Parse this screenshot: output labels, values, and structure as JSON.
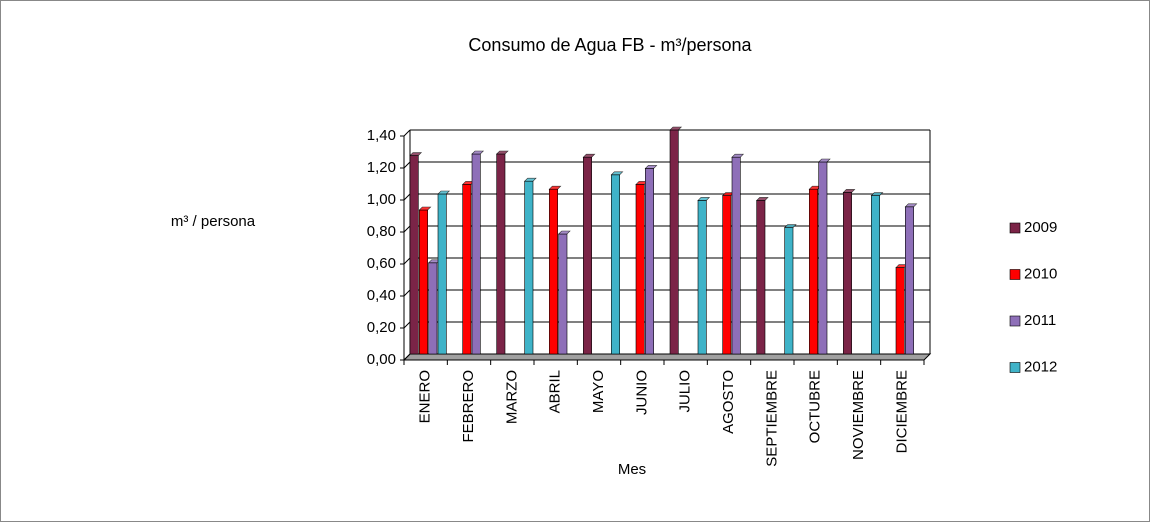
{
  "chart_data": {
    "type": "bar",
    "title": "Consumo de Agua FB - m³/persona",
    "y_label": "m³ / persona",
    "x_label": "Mes",
    "categories": [
      "ENERO",
      "FEBRERO",
      "MARZO",
      "ABRIL",
      "MAYO",
      "JUNIO",
      "JULIO",
      "AGOSTO",
      "SEPTIEMBRE",
      "OCTUBRE",
      "NOVIEMBRE",
      "DICIEMBRE"
    ],
    "series": [
      {
        "name": "2009",
        "color": "#7b2447",
        "values": [
          1.24,
          null,
          1.25,
          null,
          1.23,
          null,
          1.4,
          null,
          0.96,
          null,
          1.01,
          null
        ]
      },
      {
        "name": "2010",
        "color": "#ff0000",
        "values": [
          0.9,
          1.06,
          null,
          1.03,
          null,
          1.06,
          null,
          0.99,
          null,
          1.03,
          null,
          0.54
        ]
      },
      {
        "name": "2011",
        "color": "#8e6fb8",
        "values": [
          0.57,
          1.25,
          null,
          0.75,
          null,
          1.16,
          null,
          1.23,
          null,
          1.2,
          null,
          0.92
        ]
      },
      {
        "name": "2012",
        "color": "#3fb3c8",
        "values": [
          1.0,
          null,
          1.08,
          null,
          1.12,
          null,
          0.96,
          null,
          0.79,
          null,
          0.99,
          null
        ]
      }
    ],
    "ylim": [
      0,
      1.4
    ],
    "yticks": [
      {
        "value": 0,
        "label": "0,00"
      },
      {
        "value": 0.2,
        "label": "0,20"
      },
      {
        "value": 0.4,
        "label": "0,40"
      },
      {
        "value": 0.6,
        "label": "0,60"
      },
      {
        "value": 0.8,
        "label": "0,80"
      },
      {
        "value": 1.0,
        "label": "1,00"
      },
      {
        "value": 1.2,
        "label": "1,20"
      },
      {
        "value": 1.4,
        "label": "1,40"
      }
    ],
    "grid": true,
    "legend": "right"
  }
}
